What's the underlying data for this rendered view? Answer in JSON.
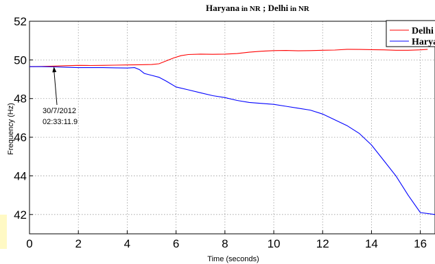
{
  "chart_data": {
    "type": "line",
    "title_part1": "Haryana",
    "title_part1_suffix": " in NR",
    "title_sep": " ; ",
    "title_part2": "Delhi",
    "title_part2_suffix": " in NR",
    "xlabel": "Time (seconds)",
    "ylabel": "Frequency (Hz)",
    "xlim": [
      0,
      16.6
    ],
    "ylim": [
      41,
      52
    ],
    "xticks": [
      0,
      2,
      4,
      6,
      8,
      10,
      12,
      14,
      16
    ],
    "yticks": [
      42,
      44,
      46,
      48,
      50,
      52
    ],
    "grid": true,
    "legend_position": "top-right",
    "annotation": {
      "line1": "30/7/2012",
      "line2": "02:33:11.9",
      "target": [
        1.0,
        49.65
      ]
    },
    "series": [
      {
        "name": "Delhi",
        "color": "#ff0000",
        "x": [
          0,
          0.5,
          1.0,
          1.5,
          2.0,
          2.5,
          3.0,
          3.5,
          4.0,
          4.5,
          5.0,
          5.3,
          5.6,
          5.9,
          6.2,
          6.5,
          7.0,
          7.5,
          8.0,
          8.5,
          9.0,
          9.5,
          10.0,
          10.5,
          11.0,
          11.5,
          12.0,
          12.5,
          13.0,
          13.5,
          14.0,
          14.5,
          15.0,
          15.5,
          16.0,
          16.3
        ],
        "y": [
          49.65,
          49.66,
          49.68,
          49.7,
          49.72,
          49.71,
          49.72,
          49.73,
          49.74,
          49.75,
          49.76,
          49.8,
          49.95,
          50.1,
          50.22,
          50.28,
          50.3,
          50.29,
          50.3,
          50.33,
          50.4,
          50.45,
          50.48,
          50.49,
          50.47,
          50.48,
          50.5,
          50.51,
          50.55,
          50.54,
          50.53,
          50.52,
          50.5,
          50.5,
          50.52,
          50.55
        ]
      },
      {
        "name": "Haryana",
        "color": "#0000ff",
        "x": [
          0,
          0.5,
          1.0,
          1.5,
          2.0,
          2.5,
          3.0,
          3.5,
          4.0,
          4.3,
          4.5,
          4.7,
          5.0,
          5.3,
          5.6,
          6.0,
          6.5,
          7.0,
          7.5,
          8.0,
          8.5,
          9.0,
          9.5,
          10.0,
          10.5,
          11.0,
          11.5,
          12.0,
          12.5,
          13.0,
          13.5,
          14.0,
          14.5,
          15.0,
          15.5,
          16.0,
          16.6
        ],
        "y": [
          49.65,
          49.65,
          49.64,
          49.62,
          49.6,
          49.6,
          49.6,
          49.59,
          49.58,
          49.6,
          49.5,
          49.3,
          49.2,
          49.1,
          48.9,
          48.6,
          48.45,
          48.3,
          48.15,
          48.05,
          47.9,
          47.8,
          47.75,
          47.7,
          47.6,
          47.5,
          47.4,
          47.2,
          46.9,
          46.6,
          46.2,
          45.6,
          44.8,
          44.0,
          43.0,
          42.1,
          42.0
        ]
      }
    ]
  }
}
